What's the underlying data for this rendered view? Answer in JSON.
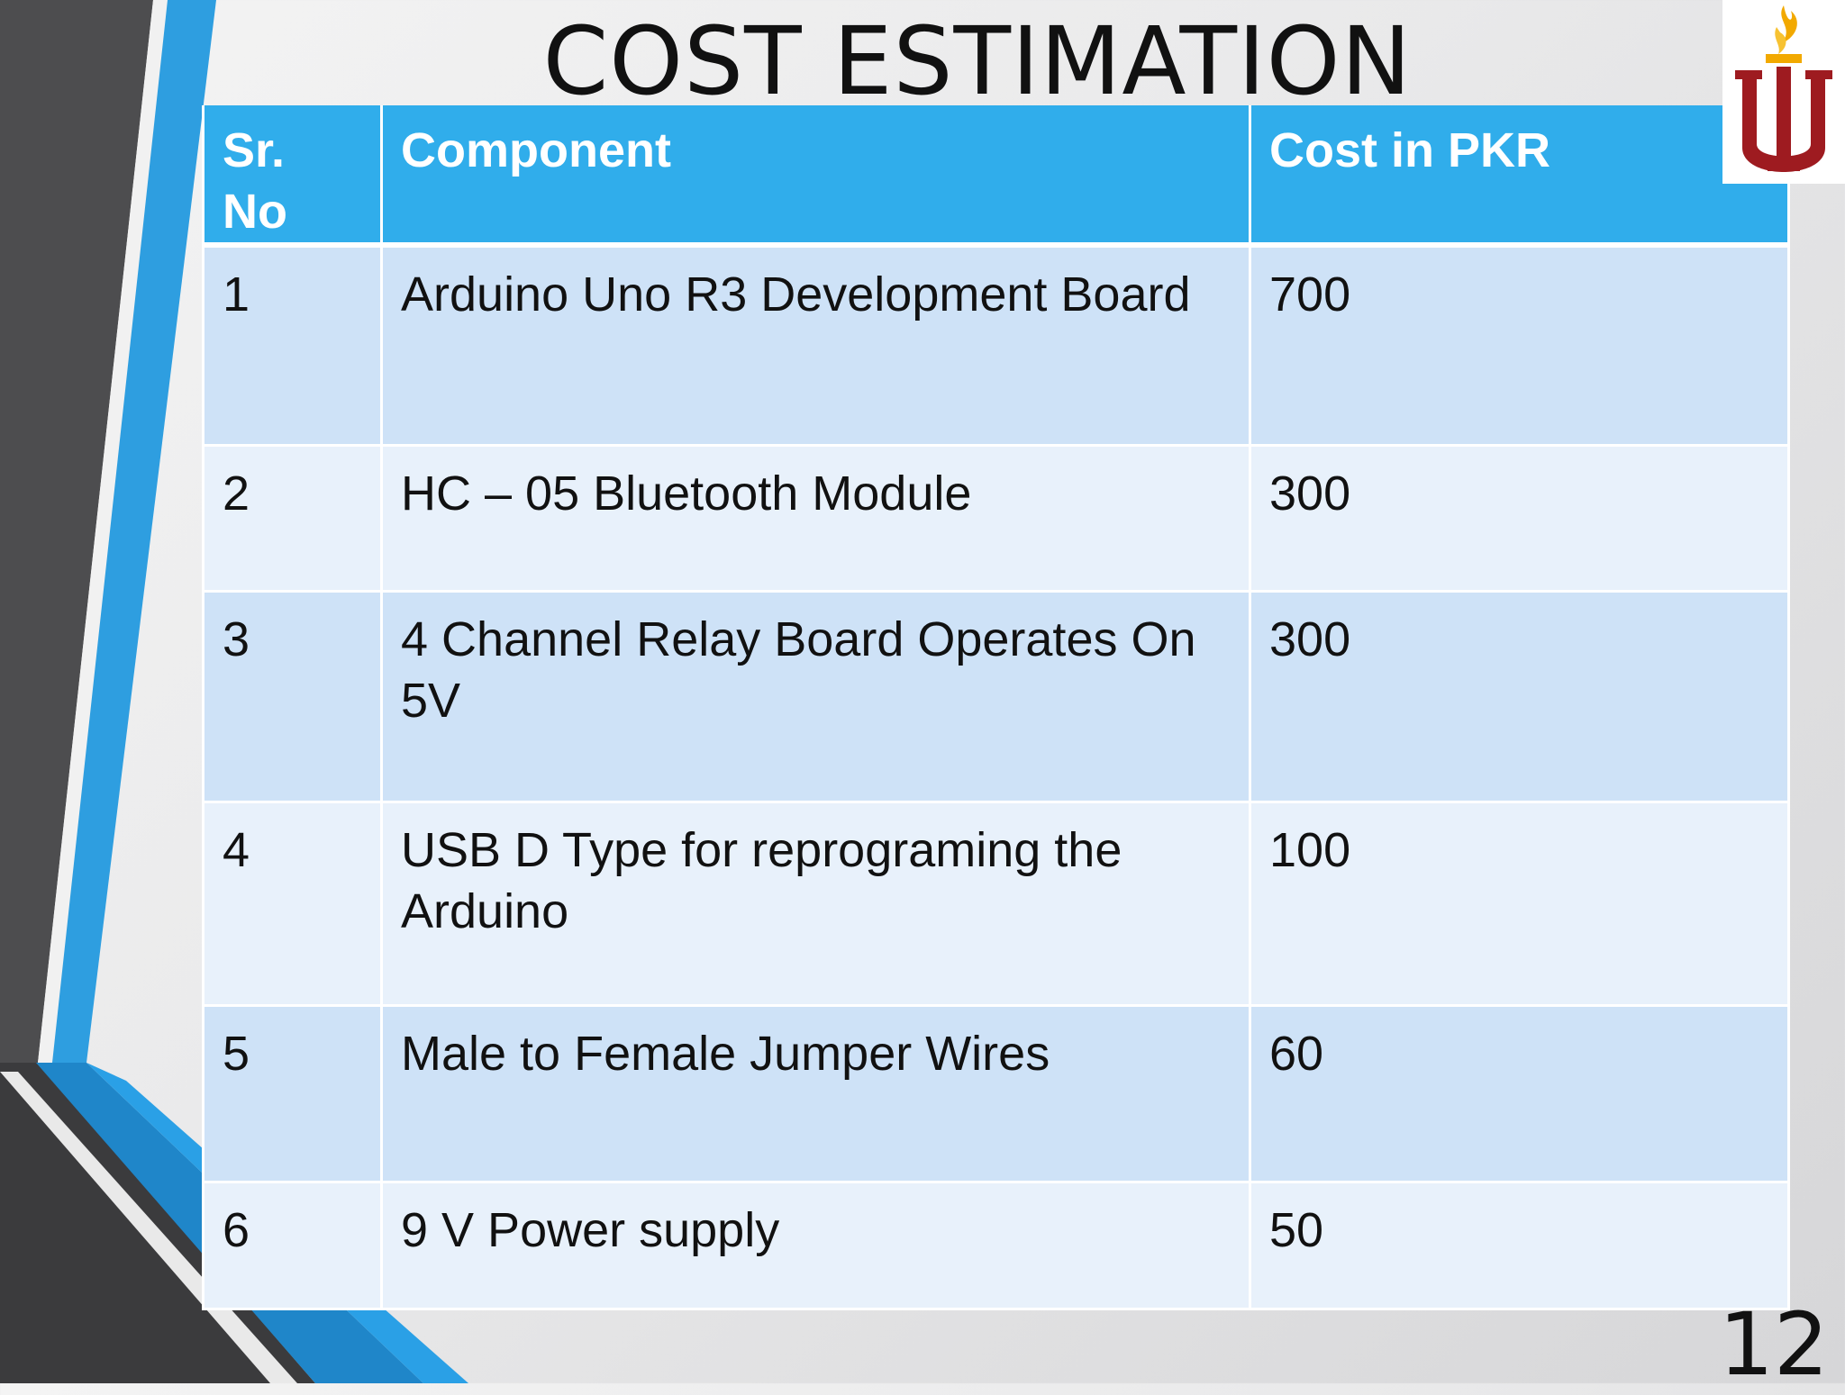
{
  "slide": {
    "title": "COST ESTIMATION",
    "page_number": "12"
  },
  "colors": {
    "header_blue": "#30adeb",
    "row_odd": "#cee2f7",
    "row_even": "#e8f1fb",
    "accent_gray": "#4d4d4f",
    "accent_blue": "#2e9ee0",
    "logo_red": "#9e1b20",
    "logo_gold": "#f2a900"
  },
  "logo": {
    "icon": "university-torch-logo-icon"
  },
  "table": {
    "headers": [
      "Sr. No",
      "Component",
      "Cost  in PKR"
    ],
    "rows": [
      {
        "sr": "1",
        "component": "Arduino Uno R3 Development Board",
        "cost": "700"
      },
      {
        "sr": "2",
        "component": "HC – 05 Bluetooth Module",
        "cost": "300"
      },
      {
        "sr": "3",
        "component": "4 Channel Relay Board Operates On 5V",
        "cost": "300"
      },
      {
        "sr": "4",
        "component": "USB D Type for reprograming the Arduino",
        "cost": "100"
      },
      {
        "sr": "5",
        "component": "Male to Female Jumper Wires",
        "cost": "60"
      },
      {
        "sr": "6",
        "component": "9 V Power supply",
        "cost": "50"
      }
    ]
  }
}
